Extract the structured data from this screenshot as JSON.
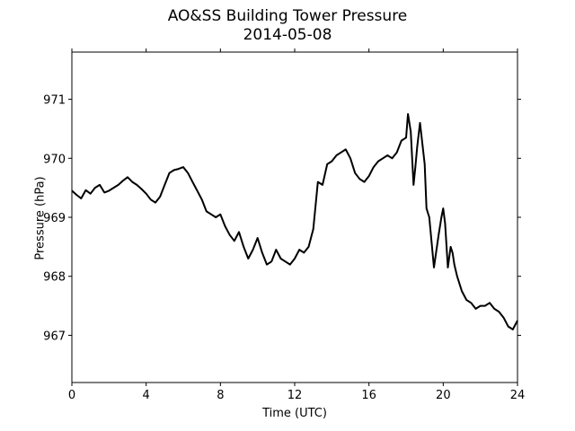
{
  "chart_data": {
    "type": "line",
    "title": "AO&SS Building Tower Pressure",
    "subtitle": "2014-05-08",
    "xlabel": "Time (UTC)",
    "ylabel": "Pressure (hPa)",
    "xlim": [
      0,
      24
    ],
    "ylim": [
      966.2,
      971.8
    ],
    "xticks": [
      0,
      4,
      8,
      12,
      16,
      20,
      24
    ],
    "yticks": [
      967,
      968,
      969,
      970,
      971
    ],
    "grid": false,
    "color": "#000000",
    "series": [
      {
        "x": [
          0,
          0.25,
          0.5,
          0.75,
          1,
          1.25,
          1.5,
          1.75,
          2,
          2.25,
          2.5,
          2.75,
          3,
          3.25,
          3.5,
          3.75,
          4,
          4.25,
          4.5,
          4.75,
          5,
          5.25,
          5.5,
          5.75,
          6,
          6.25,
          6.5,
          6.75,
          7,
          7.25,
          7.5,
          7.75,
          8,
          8.25,
          8.5,
          8.75,
          9,
          9.25,
          9.5,
          9.75,
          10,
          10.25,
          10.5,
          10.75,
          11,
          11.25,
          11.5,
          11.75,
          12,
          12.25,
          12.5,
          12.75,
          13,
          13.25,
          13.5,
          13.75,
          14,
          14.25,
          14.5,
          14.75,
          15,
          15.25,
          15.5,
          15.75,
          16,
          16.25,
          16.5,
          16.75,
          17,
          17.25,
          17.5,
          17.75,
          18,
          18.1,
          18.25,
          18.4,
          18.5,
          18.6,
          18.75,
          19,
          19.1,
          19.25,
          19.5,
          19.75,
          19.9,
          20,
          20.1,
          20.25,
          20.4,
          20.5,
          20.6,
          20.75,
          21,
          21.25,
          21.5,
          21.75,
          22,
          22.25,
          22.5,
          22.75,
          23,
          23.25,
          23.5,
          23.75,
          24
        ],
        "y": [
          969.45,
          969.38,
          969.32,
          969.46,
          969.4,
          969.5,
          969.55,
          969.42,
          969.45,
          969.5,
          969.55,
          969.62,
          969.68,
          969.6,
          969.55,
          969.48,
          969.4,
          969.3,
          969.25,
          969.35,
          969.55,
          969.75,
          969.8,
          969.82,
          969.85,
          969.75,
          969.6,
          969.45,
          969.3,
          969.1,
          969.05,
          969.0,
          969.05,
          968.85,
          968.7,
          968.6,
          968.75,
          968.5,
          968.3,
          968.45,
          968.65,
          968.4,
          968.2,
          968.25,
          968.45,
          968.3,
          968.25,
          968.2,
          968.3,
          968.45,
          968.4,
          968.5,
          968.8,
          969.6,
          969.55,
          969.9,
          969.95,
          970.05,
          970.1,
          970.15,
          970.0,
          969.75,
          969.65,
          969.6,
          969.7,
          969.85,
          969.95,
          970.0,
          970.05,
          970.0,
          970.1,
          970.3,
          970.35,
          970.75,
          970.45,
          969.55,
          969.85,
          970.2,
          970.6,
          969.9,
          969.15,
          969.0,
          968.15,
          968.7,
          969.0,
          969.15,
          968.9,
          968.15,
          968.5,
          968.4,
          968.2,
          968.0,
          967.75,
          967.6,
          967.55,
          967.45,
          967.5,
          967.5,
          967.55,
          967.45,
          967.4,
          967.3,
          967.15,
          967.1,
          967.25
        ]
      }
    ]
  }
}
